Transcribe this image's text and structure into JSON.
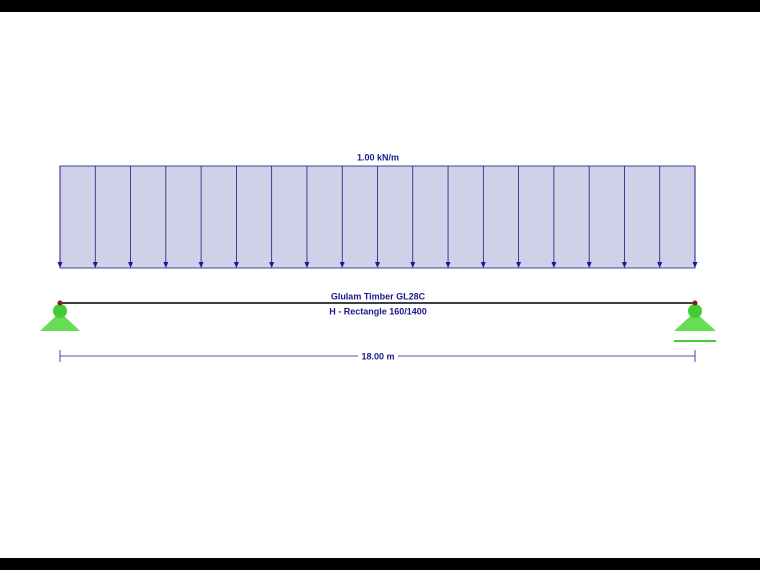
{
  "load": {
    "label": "1.00 kN/m"
  },
  "member": {
    "material": "Glulam Timber GL28C",
    "section": "H - Rectangle 160/1400"
  },
  "dimension": {
    "label": "18.00 m"
  }
}
